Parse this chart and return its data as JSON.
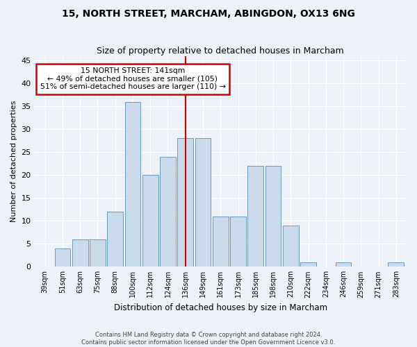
{
  "title": "15, NORTH STREET, MARCHAM, ABINGDON, OX13 6NG",
  "subtitle": "Size of property relative to detached houses in Marcham",
  "xlabel": "Distribution of detached houses by size in Marcham",
  "ylabel": "Number of detached properties",
  "bar_labels": [
    "39sqm",
    "51sqm",
    "63sqm",
    "75sqm",
    "88sqm",
    "100sqm",
    "112sqm",
    "124sqm",
    "136sqm",
    "149sqm",
    "161sqm",
    "173sqm",
    "185sqm",
    "198sqm",
    "210sqm",
    "222sqm",
    "234sqm",
    "246sqm",
    "259sqm",
    "271sqm",
    "283sqm"
  ],
  "bar_values": [
    0,
    4,
    6,
    6,
    12,
    36,
    20,
    24,
    28,
    28,
    11,
    11,
    22,
    22,
    9,
    1,
    0,
    1,
    0,
    0,
    1
  ],
  "bar_color": "#c9daea",
  "bar_edge_color": "#5b8db8",
  "vline_color": "#cc0000",
  "annotation_text": "15 NORTH STREET: 141sqm\n← 49% of detached houses are smaller (105)\n51% of semi-detached houses are larger (110) →",
  "annotation_box_color": "#ffffff",
  "annotation_box_edge": "#cc0000",
  "ylim": [
    0,
    46
  ],
  "yticks": [
    0,
    5,
    10,
    15,
    20,
    25,
    30,
    35,
    40,
    45
  ],
  "footer_line1": "Contains HM Land Registry data © Crown copyright and database right 2024.",
  "footer_line2": "Contains public sector information licensed under the Open Government Licence v3.0.",
  "bg_color": "#eef2f8",
  "grid_color": "#ffffff",
  "title_fontsize": 10,
  "subtitle_fontsize": 9
}
